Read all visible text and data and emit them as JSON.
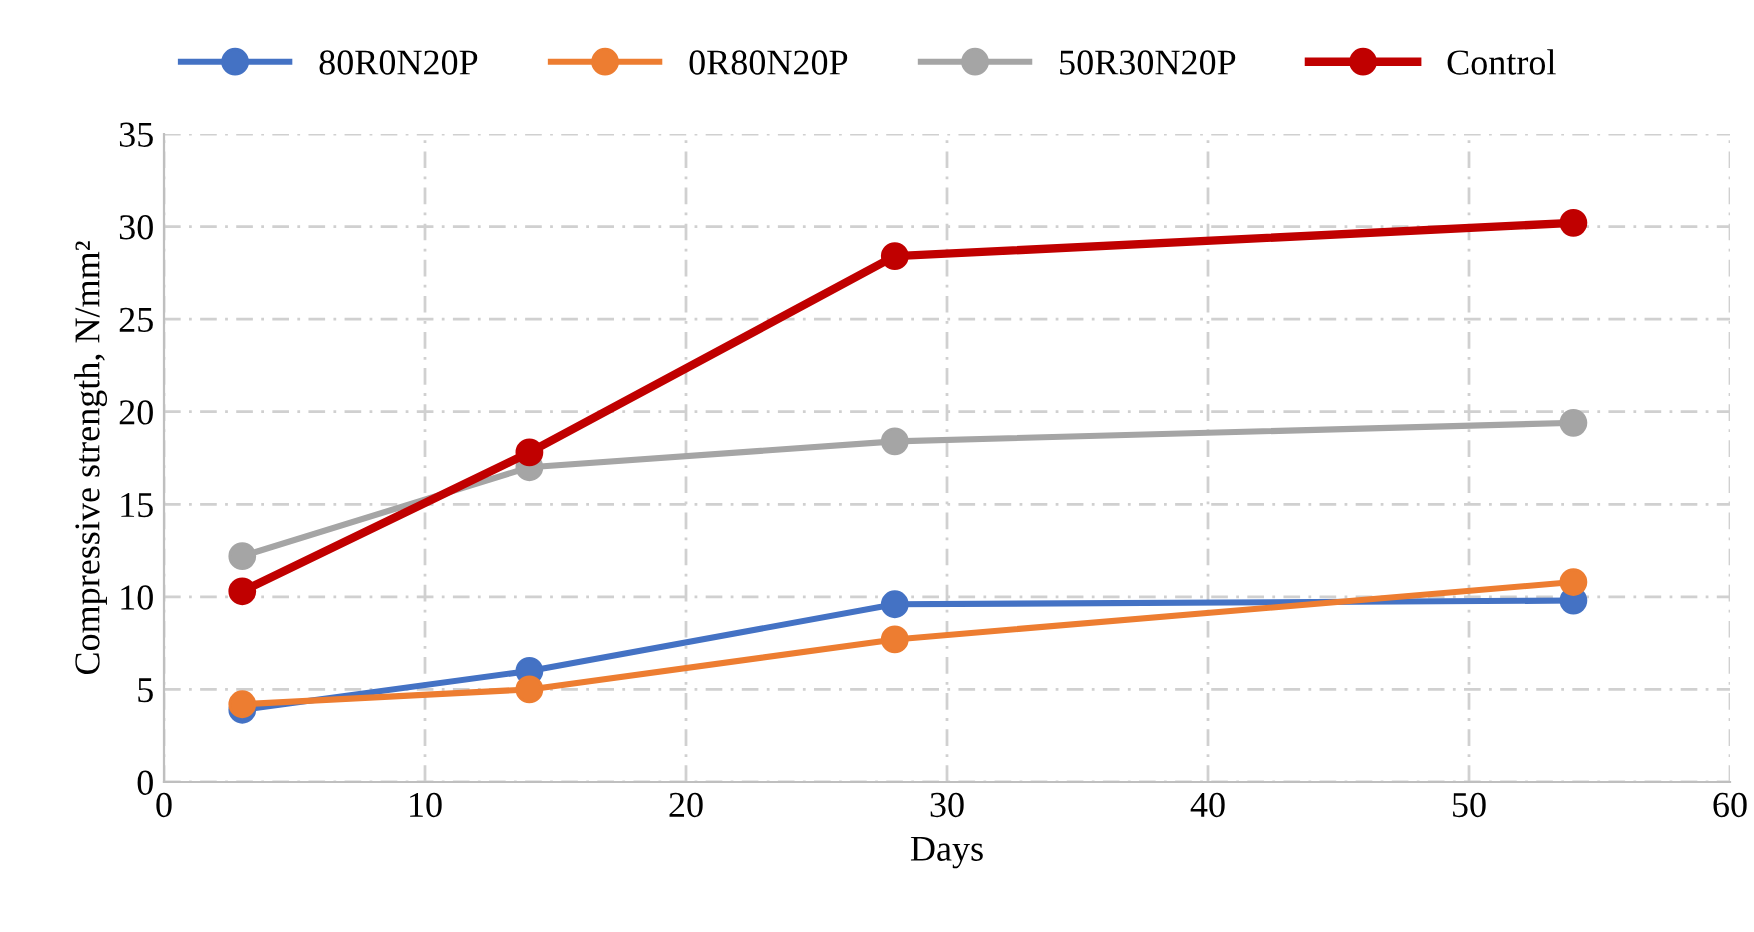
{
  "chart_data": {
    "type": "line",
    "xlabel": "Days",
    "ylabel": "Compressive strength, N/mm²",
    "x": [
      3,
      14,
      28,
      54
    ],
    "series": [
      {
        "name": "80R0N20P",
        "color": "#4472c4",
        "values": [
          3.9,
          6.0,
          9.6,
          9.8
        ]
      },
      {
        "name": "0R80N20P",
        "color": "#ed7d31",
        "values": [
          4.2,
          5.0,
          7.7,
          10.8
        ]
      },
      {
        "name": "50R30N20P",
        "color": "#a5a5a5",
        "values": [
          12.2,
          17.0,
          18.4,
          19.4
        ]
      },
      {
        "name": "Control",
        "color": "#c00000",
        "values": [
          10.3,
          17.8,
          28.4,
          30.2
        ]
      }
    ],
    "xlim": [
      0,
      60
    ],
    "xticks": [
      0,
      10,
      20,
      30,
      40,
      50,
      60
    ],
    "ylim": [
      0,
      35
    ],
    "yticks": [
      0,
      5,
      10,
      15,
      20,
      25,
      30,
      35
    ],
    "grid": true,
    "legend": "top",
    "marker": "circle",
    "line_style": "solid"
  }
}
